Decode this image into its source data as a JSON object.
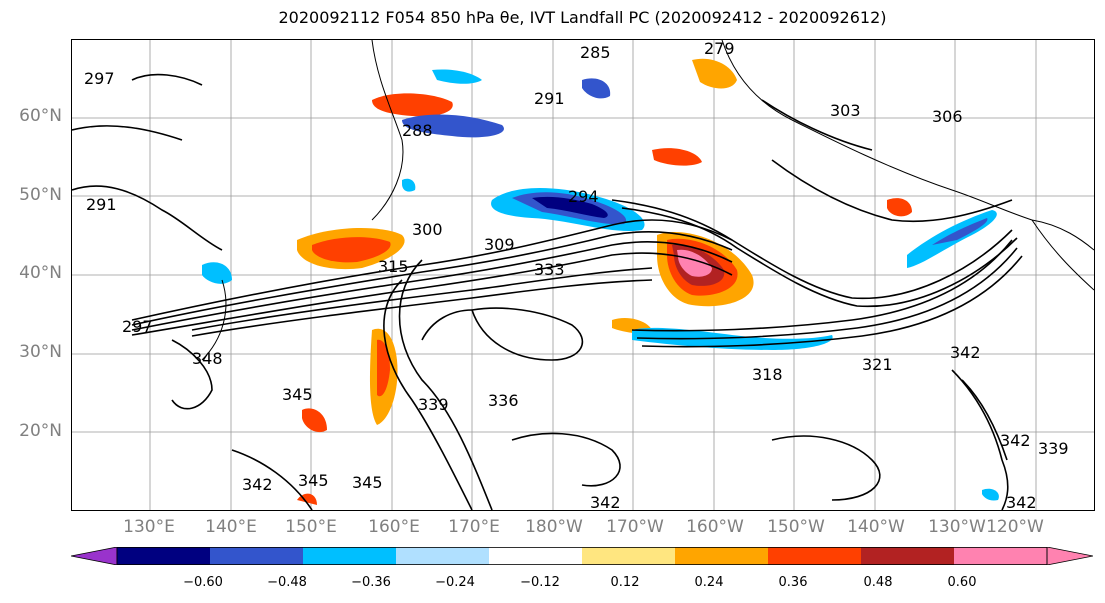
{
  "title": "2020092112 F054 850 hPa θe, IVT Landfall PC (2020092412 - 2020092612)",
  "lat_labels": [
    "60°N",
    "50°N",
    "40°N",
    "30°N",
    "20°N"
  ],
  "lon_labels": [
    "130°E",
    "140°E",
    "150°E",
    "160°E",
    "170°E",
    "180°W",
    "170°W",
    "160°W",
    "150°W",
    "140°W",
    "130°W",
    "120°W"
  ],
  "colorbar": {
    "colors": [
      "#9933cc",
      "#000080",
      "#3355cc",
      "#00bfff",
      "#b0e0ff",
      "#ffffff",
      "#ffe680",
      "#ffa500",
      "#ff4000",
      "#b22222",
      "#ff82b0",
      "#ff82b0"
    ],
    "tick_labels": [
      "−0.60",
      "−0.48",
      "−0.36",
      "−0.24",
      "−0.12",
      "0.12",
      "0.24",
      "0.36",
      "0.48",
      "0.60"
    ]
  },
  "contour_labels": [
    "297",
    "285",
    "279",
    "291",
    "288",
    "300",
    "309",
    "333",
    "315",
    "342",
    "348",
    "339",
    "336",
    "345",
    "303",
    "306",
    "318",
    "321",
    "342",
    "339",
    "342",
    "342",
    "345",
    "345",
    "294",
    "297",
    "291"
  ]
}
